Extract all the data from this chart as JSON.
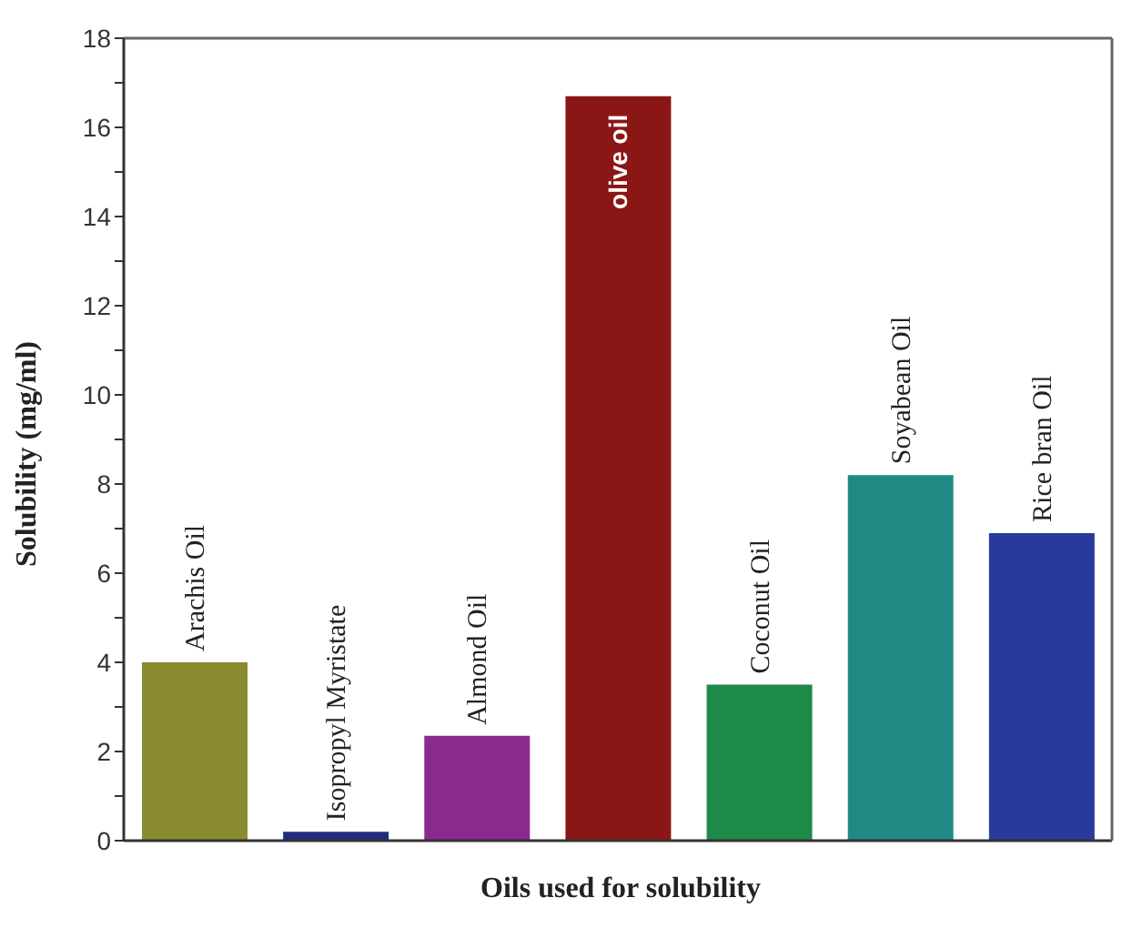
{
  "chart_data": {
    "type": "bar",
    "xlabel": "Oils used for solubility",
    "ylabel": "Solubility (mg/ml)",
    "categories": [
      "Arachis Oil",
      "Isopropyl Myristate",
      "Almond Oil",
      "olive oil",
      "Coconut Oil",
      "Soyabean Oil",
      "Rice bran Oil"
    ],
    "values": [
      4.0,
      0.2,
      2.35,
      16.7,
      3.5,
      8.2,
      6.9
    ],
    "colors": [
      "#8a8a30",
      "#222a80",
      "#8a2a8e",
      "#8b1616",
      "#1e8a48",
      "#1f8a84",
      "#2a3a9c"
    ],
    "ylim": [
      0,
      18
    ],
    "yticks": [
      0,
      {
        "value": 1,
        "label": null
      },
      2,
      {
        "value": 3,
        "label": null
      },
      4,
      {
        "value": 5,
        "label": null
      },
      6,
      {
        "value": 7,
        "label": null
      },
      8,
      {
        "value": 9,
        "label": null
      },
      10,
      {
        "value": 11,
        "label": null
      },
      12,
      {
        "value": 13,
        "label": null
      },
      14,
      {
        "value": 15,
        "label": null
      },
      16,
      {
        "value": 17,
        "label": null
      },
      18
    ],
    "grid": false
  }
}
